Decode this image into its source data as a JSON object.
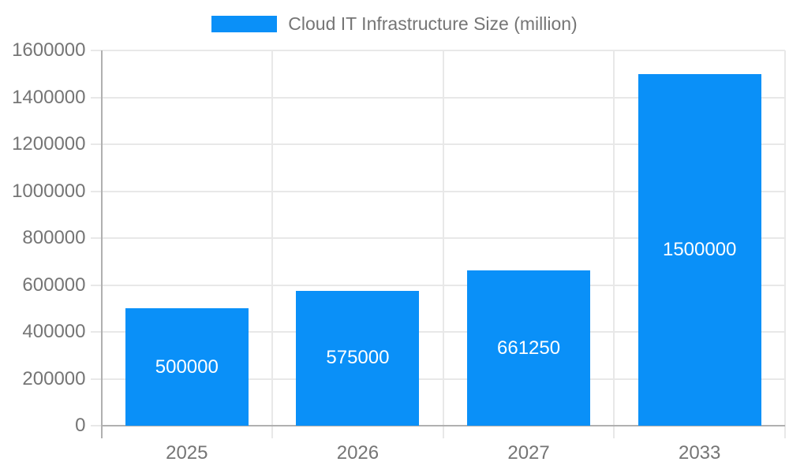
{
  "legend": {
    "label": "Cloud IT Infrastructure Size (million)"
  },
  "chart_data": {
    "type": "bar",
    "title": "",
    "xlabel": "",
    "ylabel": "",
    "categories": [
      "2025",
      "2026",
      "2027",
      "2033"
    ],
    "values": [
      500000,
      575000,
      661250,
      1500000
    ],
    "bar_labels": [
      "500000",
      "575000",
      "661250",
      "1500000"
    ],
    "series": [
      {
        "name": "Cloud IT Infrastructure Size (million)",
        "values": [
          500000,
          575000,
          661250,
          1500000
        ]
      }
    ],
    "ylim": [
      0,
      1600000
    ],
    "ytick_step": 200000,
    "ytick_values": [
      0,
      200000,
      400000,
      600000,
      800000,
      1000000,
      1200000,
      1400000,
      1600000
    ],
    "ytick_labels": [
      "0",
      "200000",
      "400000",
      "600000",
      "800000",
      "1000000",
      "1200000",
      "1400000",
      "1600000"
    ],
    "grid": true,
    "legend_position": "top",
    "colors": {
      "bar": "#0a90f8",
      "grid": "#e8e8e8",
      "axis": "#b0b0b0",
      "text": "#757575",
      "bar_label": "#ffffff",
      "background": "#ffffff"
    }
  }
}
